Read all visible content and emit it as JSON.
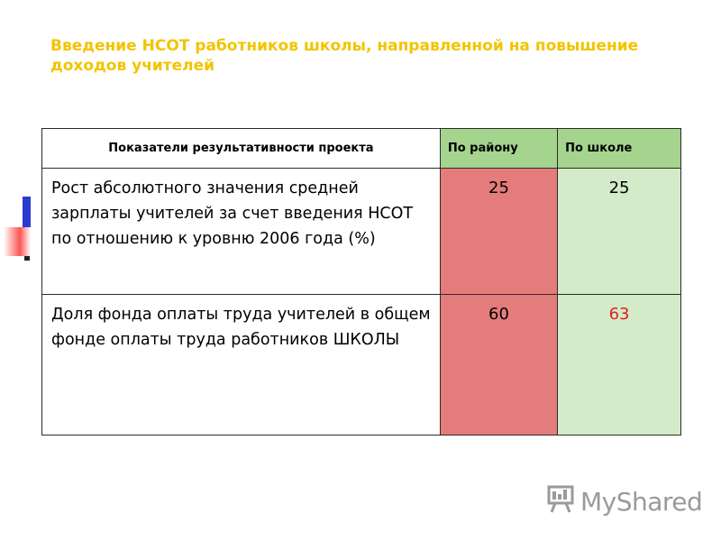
{
  "title": "Введение НСОТ работников школы, направленной на повышение доходов учителей",
  "table": {
    "headers": [
      "Показатели результативности проекта",
      "По району",
      "По школе"
    ],
    "rows": [
      {
        "indicator": "Рост абсолютного значения средней зарплаты учителей за счет введения НСОТ по отношению к уровню 2006 года (%)",
        "district": "25",
        "school": "25"
      },
      {
        "indicator": "Доля фонда оплаты труда учителей в общем фонде оплаты труда работников ШКОЛЫ",
        "district": "60",
        "school": "63"
      }
    ]
  },
  "colors": {
    "title": "#f2c400",
    "header_green": "#a4d48e",
    "district_red": "#e57c7c",
    "school_green": "#d3ebc8",
    "highlight_red": "#e02020"
  },
  "watermark": "MyShared"
}
